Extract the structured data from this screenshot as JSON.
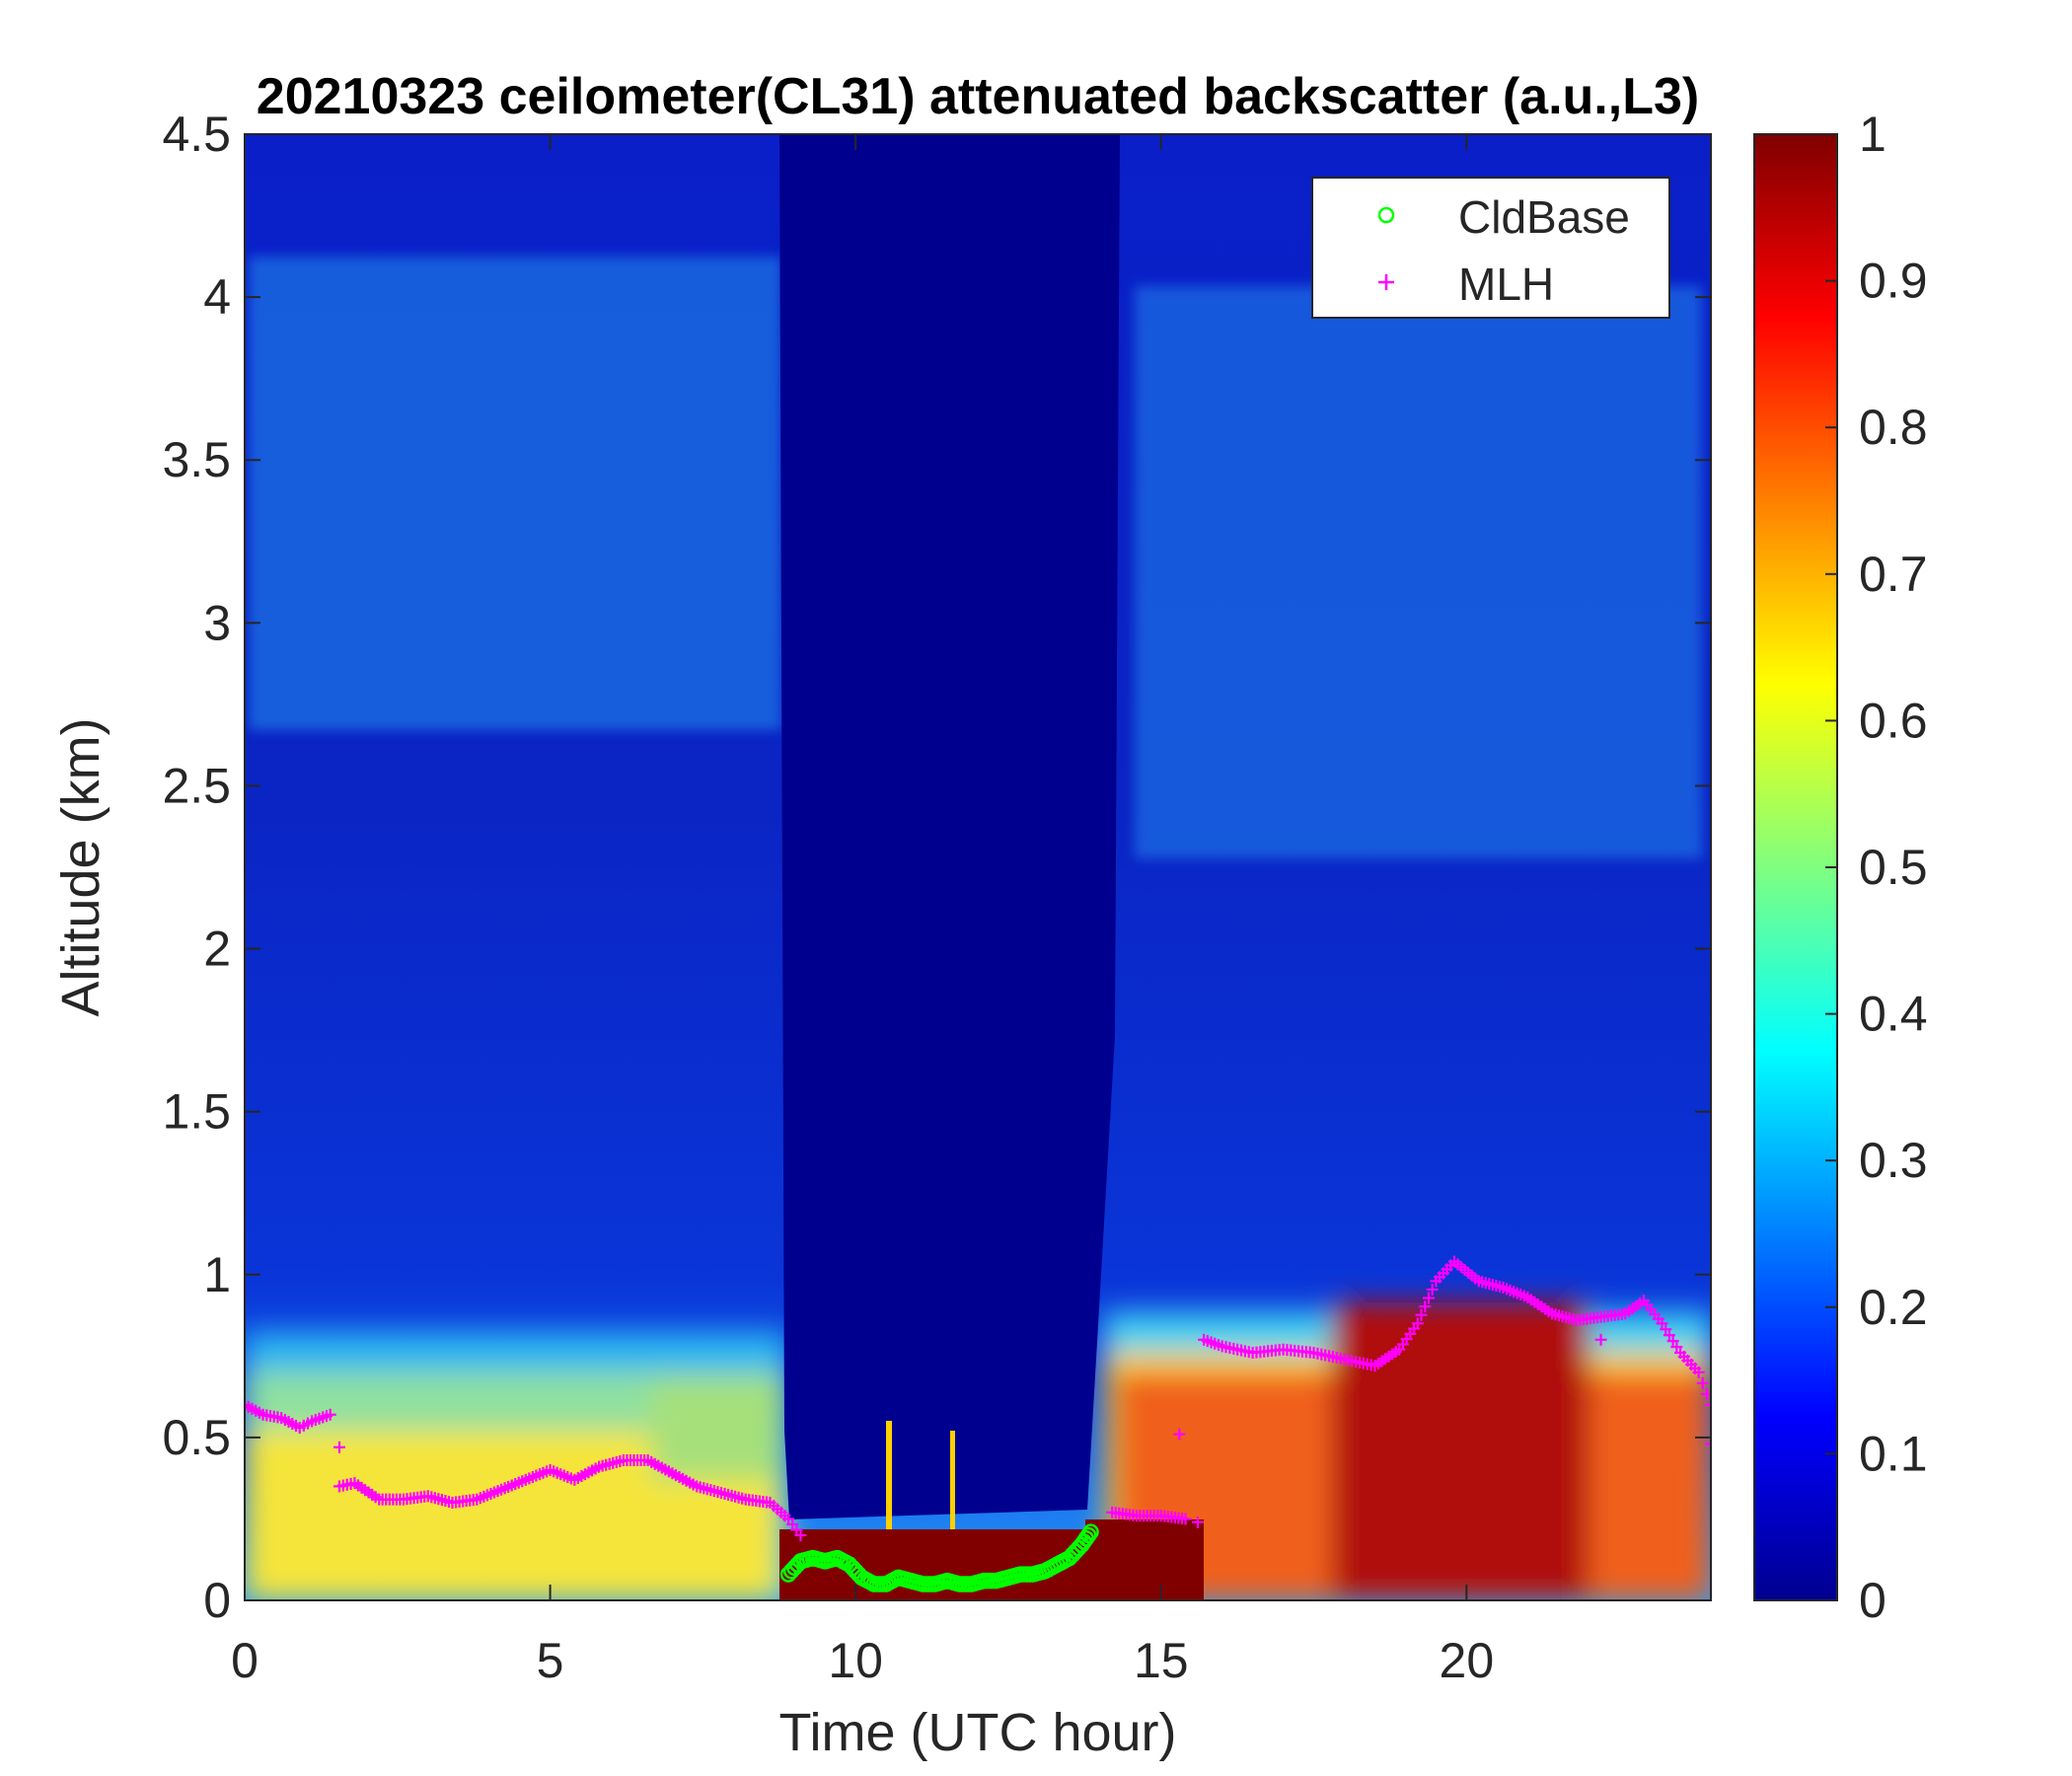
{
  "chart_data": {
    "type": "heatmap",
    "title": "20210323 ceilometer(CL31) attenuated backscatter (a.u.,L3)",
    "xlabel": "Time (UTC hour)",
    "ylabel": "Altitude (km)",
    "xlim": [
      0,
      24
    ],
    "ylim": [
      0,
      4.5
    ],
    "xticks": [
      0,
      5,
      10,
      15,
      20
    ],
    "xtick_labels": [
      "0",
      "5",
      "10",
      "15",
      "20"
    ],
    "yticks": [
      0,
      0.5,
      1,
      1.5,
      2,
      2.5,
      3,
      3.5,
      4,
      4.5
    ],
    "ytick_labels": [
      "0",
      "0.5",
      "1",
      "1.5",
      "2",
      "2.5",
      "3",
      "3.5",
      "4",
      "4.5"
    ],
    "colorbar": {
      "colormap": "jet",
      "range": [
        0,
        1
      ],
      "ticks": [
        0,
        0.1,
        0.2,
        0.3,
        0.4,
        0.5,
        0.6,
        0.7,
        0.8,
        0.9,
        1
      ],
      "tick_labels": [
        "0",
        "0.1",
        "0.2",
        "0.3",
        "0.4",
        "0.5",
        "0.6",
        "0.7",
        "0.8",
        "0.9",
        "1"
      ]
    },
    "legend": {
      "placement": "top-right",
      "entries": [
        {
          "name": "CldBase",
          "marker": "circle",
          "color": "#00ff00"
        },
        {
          "name": "MLH",
          "marker": "plus",
          "color": "#ff00ff"
        }
      ]
    },
    "series": [
      {
        "name": "MLH",
        "x": [
          0.0,
          0.3,
          0.6,
          0.9,
          1.1,
          1.4,
          1.55,
          1.8,
          2.2,
          2.6,
          3.0,
          3.4,
          3.8,
          4.2,
          4.6,
          5.0,
          5.4,
          5.8,
          6.2,
          6.6,
          7.0,
          7.4,
          7.8,
          8.2,
          8.6,
          8.9,
          9.1,
          14.2,
          14.6,
          15.0,
          15.4,
          15.7,
          16.0,
          16.5,
          17.0,
          17.5,
          18.0,
          18.5,
          18.9,
          19.2,
          19.5,
          19.8,
          20.2,
          20.6,
          21.0,
          21.4,
          21.8,
          22.2,
          22.6,
          22.9,
          23.2,
          23.5,
          23.8,
          24.0
        ],
        "y": [
          0.6,
          0.57,
          0.56,
          0.53,
          0.55,
          0.57,
          0.35,
          0.36,
          0.31,
          0.31,
          0.32,
          0.3,
          0.31,
          0.34,
          0.37,
          0.4,
          0.37,
          0.41,
          0.43,
          0.43,
          0.39,
          0.35,
          0.33,
          0.31,
          0.3,
          0.25,
          0.2,
          0.27,
          0.26,
          0.26,
          0.25,
          0.8,
          0.78,
          0.76,
          0.77,
          0.76,
          0.74,
          0.72,
          0.77,
          0.85,
          0.98,
          1.04,
          0.98,
          0.96,
          0.93,
          0.88,
          0.86,
          0.87,
          0.88,
          0.92,
          0.85,
          0.76,
          0.7,
          0.6
        ],
        "outliers_x": [
          1.55,
          15.3,
          15.6,
          22.2,
          24.0
        ],
        "outliers_y": [
          0.47,
          0.51,
          0.24,
          0.8,
          0.48
        ]
      },
      {
        "name": "CldBase",
        "x": [
          8.9,
          9.1,
          9.3,
          9.5,
          9.7,
          9.9,
          10.1,
          10.3,
          10.5,
          10.7,
          10.9,
          11.1,
          11.3,
          11.5,
          11.7,
          11.9,
          12.1,
          12.3,
          12.5,
          12.7,
          12.9,
          13.1,
          13.3,
          13.5,
          13.7,
          13.85
        ],
        "y": [
          0.08,
          0.12,
          0.13,
          0.12,
          0.13,
          0.11,
          0.07,
          0.05,
          0.05,
          0.07,
          0.06,
          0.05,
          0.05,
          0.06,
          0.05,
          0.05,
          0.06,
          0.06,
          0.07,
          0.08,
          0.08,
          0.09,
          0.11,
          0.13,
          0.17,
          0.21
        ]
      }
    ]
  }
}
